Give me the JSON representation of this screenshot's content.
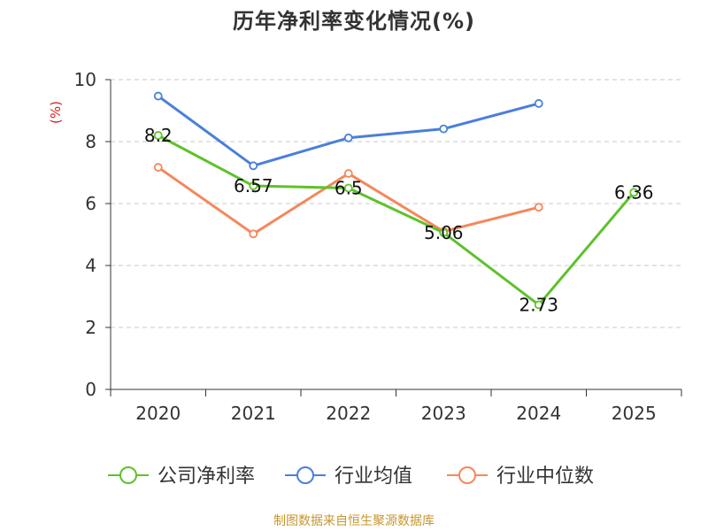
{
  "title": "历年净利率变化情况(%)",
  "footer": "制图数据来自恒生聚源数据库",
  "chart_data": {
    "type": "line",
    "title": "历年净利率变化情况(%)",
    "ylabel": "(%)",
    "xlabel": "",
    "categories": [
      "2020",
      "2021",
      "2022",
      "2023",
      "2024",
      "2025"
    ],
    "ylim": [
      0,
      10
    ],
    "yticks": [
      0,
      2,
      4,
      6,
      8,
      10
    ],
    "grid": true,
    "legend_position": "bottom",
    "series": [
      {
        "name": "公司净利率",
        "values": [
          8.2,
          6.57,
          6.5,
          5.06,
          2.73,
          6.36
        ],
        "labels": [
          "8.2",
          "6.57",
          "6.5",
          "5.06",
          "2.73",
          "6.36"
        ],
        "color": "#5ec22a"
      },
      {
        "name": "行业均值",
        "values": [
          9.47,
          7.22,
          8.12,
          8.41,
          9.23,
          null
        ],
        "color": "#4a7fdb"
      },
      {
        "name": "行业中位数",
        "values": [
          7.17,
          5.02,
          6.97,
          5.1,
          5.88,
          null
        ],
        "color": "#f5875a"
      }
    ]
  }
}
